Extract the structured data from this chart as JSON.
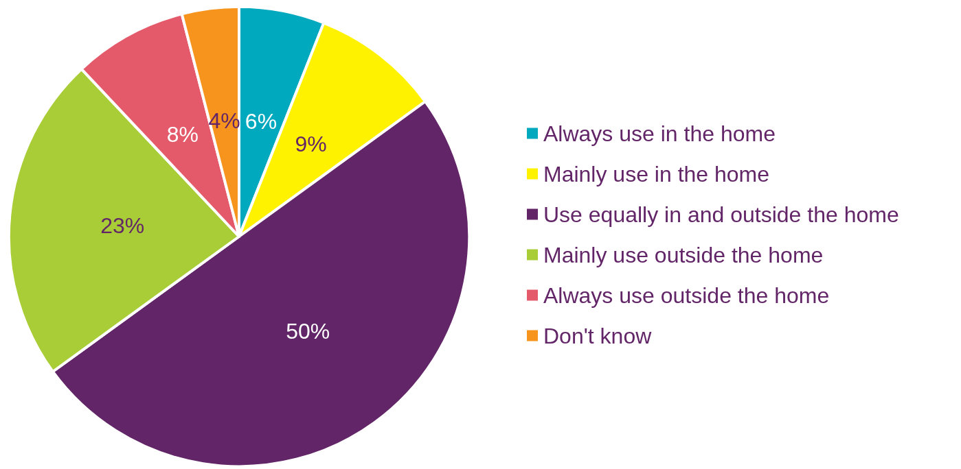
{
  "chart_data": {
    "type": "pie",
    "categories": [
      "Always use in the home",
      "Mainly use in the home",
      "Use equally in and outside the home",
      "Mainly use outside the home",
      "Always use outside the home",
      "Don't know"
    ],
    "values": [
      6,
      9,
      50,
      23,
      8,
      4
    ],
    "colors": [
      "#00a9bd",
      "#fff200",
      "#622567",
      "#a9cd37",
      "#e45a6a",
      "#f7941d"
    ],
    "value_labels": [
      "6%",
      "9%",
      "50%",
      "23%",
      "8%",
      "4%"
    ],
    "legend": "right"
  }
}
